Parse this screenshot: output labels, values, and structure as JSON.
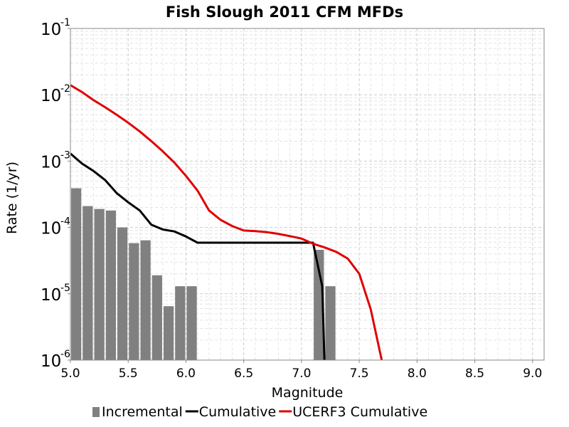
{
  "chart_data": {
    "type": "bar",
    "title": "Fish Slough 2011 CFM MFDs",
    "xlabel": "Magnitude",
    "ylabel": "Rate (1/yr)",
    "xlim": [
      5.0,
      9.1
    ],
    "ylim": [
      1e-06,
      0.1
    ],
    "y_scale": "log",
    "grid": true,
    "legend_position": "bottom",
    "x_ticks": [
      "5.0",
      "5.5",
      "6.0",
      "6.5",
      "7.0",
      "7.5",
      "8.0",
      "8.5",
      "9.0"
    ],
    "y_ticks": [
      {
        "base": "10",
        "exp": "-1",
        "value": 0.1
      },
      {
        "base": "10",
        "exp": "-2",
        "value": 0.01
      },
      {
        "base": "10",
        "exp": "-3",
        "value": 0.001
      },
      {
        "base": "10",
        "exp": "-4",
        "value": 0.0001
      },
      {
        "base": "10",
        "exp": "-5",
        "value": 1e-05
      },
      {
        "base": "10",
        "exp": "-6",
        "value": 1e-06
      }
    ],
    "series": [
      {
        "name": "Incremental",
        "kind": "bar",
        "color": "#808080",
        "x": [
          5.0,
          5.1,
          5.2,
          5.3,
          5.4,
          5.5,
          5.6,
          5.7,
          5.8,
          5.9,
          6.0,
          7.1,
          7.2
        ],
        "values": [
          0.00039,
          0.00021,
          0.00019,
          0.00018,
          0.0001,
          5.8e-05,
          6.4e-05,
          1.9e-05,
          6.5e-06,
          1.3e-05,
          1.3e-05,
          4.6e-05,
          1.3e-05
        ]
      },
      {
        "name": "Cumulative",
        "kind": "line",
        "color": "#000000",
        "x": [
          5.0,
          5.1,
          5.2,
          5.3,
          5.4,
          5.5,
          5.6,
          5.7,
          5.8,
          5.9,
          6.0,
          6.1,
          6.5,
          7.0,
          7.1,
          7.18,
          7.2
        ],
        "values": [
          0.0013,
          0.00092,
          0.00071,
          0.00052,
          0.00033,
          0.00024,
          0.00018,
          0.00011,
          9.3e-05,
          8.7e-05,
          7.3e-05,
          5.9e-05,
          5.9e-05,
          5.9e-05,
          5.9e-05,
          1.3e-05,
          8e-07
        ]
      },
      {
        "name": "UCERF3 Cumulative",
        "kind": "line",
        "color": "#e00000",
        "x": [
          5.0,
          5.1,
          5.2,
          5.3,
          5.4,
          5.5,
          5.6,
          5.7,
          5.8,
          5.9,
          6.0,
          6.1,
          6.2,
          6.3,
          6.4,
          6.5,
          6.6,
          6.7,
          6.8,
          6.9,
          7.0,
          7.1,
          7.2,
          7.3,
          7.4,
          7.5,
          7.6,
          7.7
        ],
        "values": [
          0.014,
          0.011,
          0.0083,
          0.0065,
          0.005,
          0.0038,
          0.0028,
          0.002,
          0.0014,
          0.00095,
          0.0006,
          0.00036,
          0.00018,
          0.00013,
          0.000105,
          9e-05,
          8.8e-05,
          8.5e-05,
          8e-05,
          7.4e-05,
          6.8e-05,
          5.7e-05,
          5e-05,
          4.3e-05,
          3.4e-05,
          2e-05,
          5.8e-06,
          9e-07
        ]
      }
    ]
  }
}
